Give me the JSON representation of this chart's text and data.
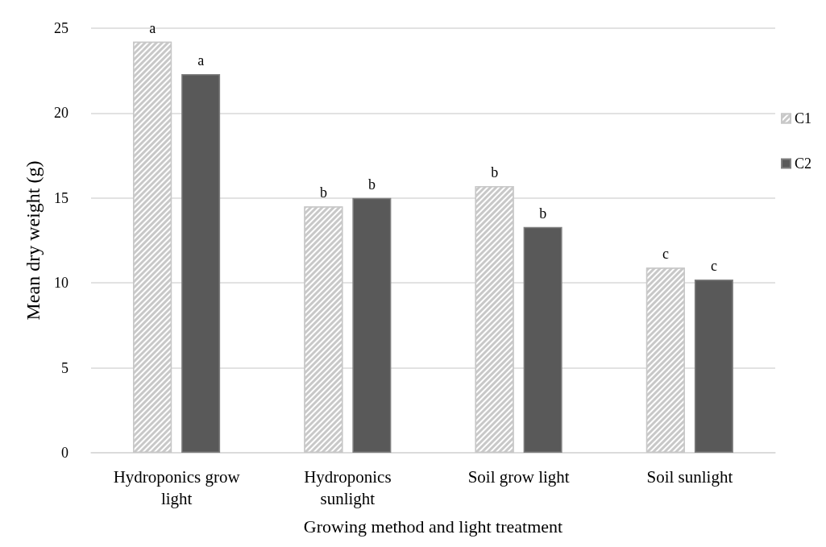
{
  "chart_data": {
    "type": "bar",
    "xlabel": "Growing method and light treatment",
    "ylabel": "Mean dry weight (g)",
    "categories": [
      "Hydroponics grow light",
      "Hydroponics sunlight",
      "Soil grow light",
      "Soil sunlight"
    ],
    "series": [
      {
        "name": "C1",
        "color": "#c8c8c8",
        "values": [
          24.2,
          14.5,
          15.7,
          10.9
        ],
        "value_labels": [
          "a",
          "b",
          "b",
          "c"
        ]
      },
      {
        "name": "C2",
        "color": "#595959",
        "values": [
          22.3,
          15.0,
          13.3,
          10.2
        ],
        "value_labels": [
          "a",
          "b",
          "b",
          "c"
        ]
      }
    ],
    "ylim": [
      0,
      25
    ],
    "yticks": [
      0,
      5,
      10,
      15,
      20,
      25
    ],
    "grid": "y",
    "legend": "right"
  }
}
